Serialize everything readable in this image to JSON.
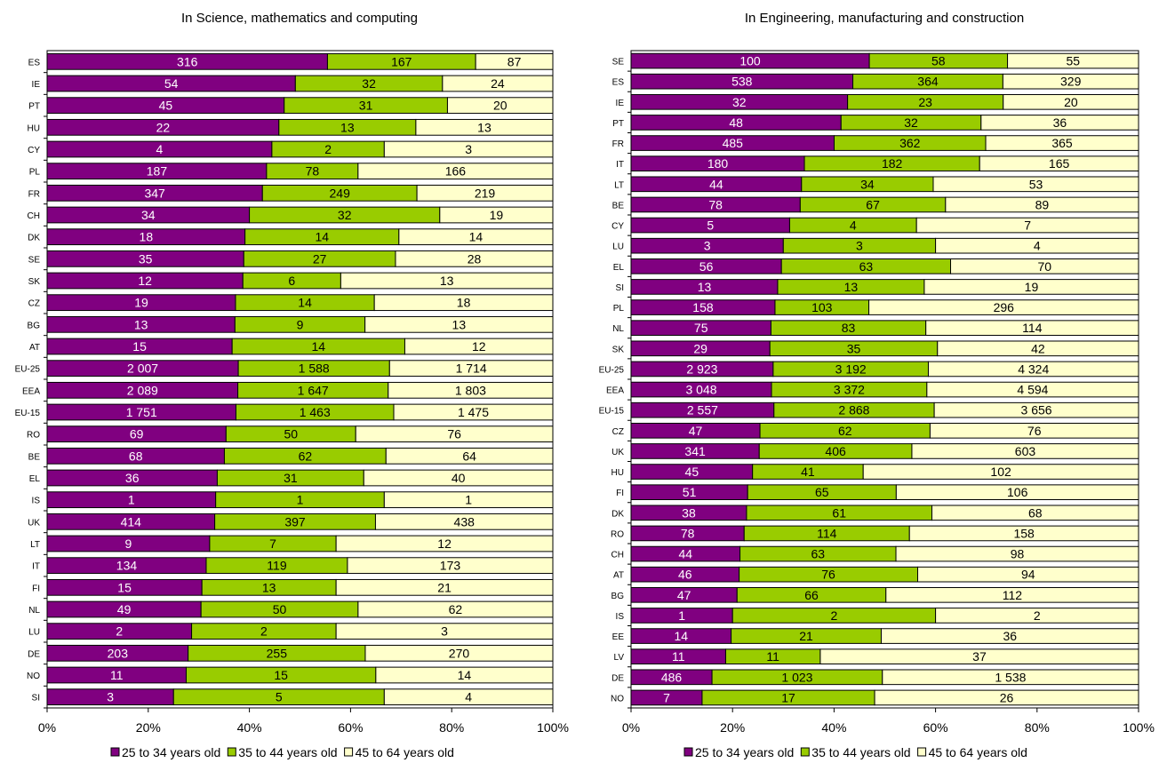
{
  "chart_data": [
    {
      "type": "bar",
      "stacked": "percent",
      "orientation": "horizontal",
      "title": "In Science, mathematics and computing",
      "categories": [
        "ES",
        "IE",
        "PT",
        "HU",
        "CY",
        "PL",
        "FR",
        "CH",
        "DK",
        "SE",
        "SK",
        "CZ",
        "BG",
        "AT",
        "EU-25",
        "EEA",
        "EU-15",
        "RO",
        "BE",
        "EL",
        "IS",
        "UK",
        "LT",
        "IT",
        "FI",
        "NL",
        "LU",
        "DE",
        "NO",
        "SI"
      ],
      "series": [
        {
          "name": "25 to 34 years old",
          "color": "#800080",
          "values": [
            316,
            54,
            45,
            22,
            4,
            187,
            347,
            34,
            18,
            35,
            12,
            19,
            13,
            15,
            2007,
            2089,
            1751,
            69,
            68,
            36,
            1,
            414,
            9,
            134,
            15,
            49,
            2,
            203,
            11,
            3
          ],
          "labels": [
            "316",
            "54",
            "45",
            "22",
            "4",
            "187",
            "347",
            "34",
            "18",
            "35",
            "12",
            "19",
            "13",
            "15",
            "2 007",
            "2 089",
            "1 751",
            "69",
            "68",
            "36",
            "1",
            "414",
            "9",
            "134",
            "15",
            "49",
            "2",
            "203",
            "11",
            "3"
          ]
        },
        {
          "name": "35 to 44 years old",
          "color": "#99CC00",
          "values": [
            167,
            32,
            31,
            13,
            2,
            78,
            249,
            32,
            14,
            27,
            6,
            14,
            9,
            14,
            1588,
            1647,
            1463,
            50,
            62,
            31,
            1,
            397,
            7,
            119,
            13,
            50,
            2,
            255,
            15,
            5
          ],
          "labels": [
            "167",
            "32",
            "31",
            "13",
            "2",
            "78",
            "249",
            "32",
            "14",
            "27",
            "6",
            "14",
            "9",
            "14",
            "1 588",
            "1 647",
            "1 463",
            "50",
            "62",
            "31",
            "1",
            "397",
            "7",
            "119",
            "13",
            "50",
            "2",
            "255",
            "15",
            "5"
          ]
        },
        {
          "name": "45 to 64 years old",
          "color": "#FFFFCC",
          "values": [
            87,
            24,
            20,
            13,
            3,
            166,
            219,
            19,
            14,
            28,
            13,
            18,
            13,
            12,
            1714,
            1803,
            1475,
            76,
            64,
            40,
            1,
            438,
            12,
            173,
            21,
            62,
            3,
            270,
            14,
            4
          ],
          "labels": [
            "87",
            "24",
            "20",
            "13",
            "3",
            "166",
            "219",
            "19",
            "14",
            "28",
            "13",
            "18",
            "13",
            "12",
            "1 714",
            "1 803",
            "1 475",
            "76",
            "64",
            "40",
            "1",
            "438",
            "12",
            "173",
            "21",
            "62",
            "3",
            "270",
            "14",
            "4"
          ]
        }
      ],
      "xticks": [
        "0%",
        "20%",
        "40%",
        "60%",
        "80%",
        "100%"
      ],
      "xlim": [
        0,
        100
      ],
      "legend": "bottom"
    },
    {
      "type": "bar",
      "stacked": "percent",
      "orientation": "horizontal",
      "title": "In Engineering, manufacturing and construction",
      "categories": [
        "SE",
        "ES",
        "IE",
        "PT",
        "FR",
        "IT",
        "LT",
        "BE",
        "CY",
        "LU",
        "EL",
        "SI",
        "PL",
        "NL",
        "SK",
        "EU-25",
        "EEA",
        "EU-15",
        "CZ",
        "UK",
        "HU",
        "FI",
        "DK",
        "RO",
        "CH",
        "AT",
        "BG",
        "IS",
        "EE",
        "LV",
        "DE",
        "NO"
      ],
      "series": [
        {
          "name": "25 to 34 years old",
          "color": "#800080",
          "values": [
            100,
            538,
            32,
            48,
            485,
            180,
            44,
            78,
            5,
            3,
            56,
            13,
            158,
            75,
            29,
            2923,
            3048,
            2557,
            47,
            341,
            45,
            51,
            38,
            78,
            44,
            46,
            47,
            1,
            14,
            11,
            486,
            7
          ],
          "labels": [
            "100",
            "538",
            "32",
            "48",
            "485",
            "180",
            "44",
            "78",
            "5",
            "3",
            "56",
            "13",
            "158",
            "75",
            "29",
            "2 923",
            "3 048",
            "2 557",
            "47",
            "341",
            "45",
            "51",
            "38",
            "78",
            "44",
            "46",
            "47",
            "1",
            "14",
            "11",
            "486",
            "7"
          ]
        },
        {
          "name": "35 to 44 years old",
          "color": "#99CC00",
          "values": [
            58,
            364,
            23,
            32,
            362,
            182,
            34,
            67,
            4,
            3,
            63,
            13,
            103,
            83,
            35,
            3192,
            3372,
            2868,
            62,
            406,
            41,
            65,
            61,
            114,
            63,
            76,
            66,
            2,
            21,
            11,
            1023,
            17
          ],
          "labels": [
            "58",
            "364",
            "23",
            "32",
            "362",
            "182",
            "34",
            "67",
            "4",
            "3",
            "63",
            "13",
            "103",
            "83",
            "35",
            "3 192",
            "3 372",
            "2 868",
            "62",
            "406",
            "41",
            "65",
            "61",
            "114",
            "63",
            "76",
            "66",
            "2",
            "21",
            "11",
            "1 023",
            "17"
          ]
        },
        {
          "name": "45 to 64 years old",
          "color": "#FFFFCC",
          "values": [
            55,
            329,
            20,
            36,
            365,
            165,
            53,
            89,
            7,
            4,
            70,
            19,
            296,
            114,
            42,
            4324,
            4594,
            3656,
            76,
            603,
            102,
            106,
            68,
            158,
            98,
            94,
            112,
            2,
            36,
            37,
            1538,
            26
          ],
          "labels": [
            "55",
            "329",
            "20",
            "36",
            "365",
            "165",
            "53",
            "89",
            "7",
            "4",
            "70",
            "19",
            "296",
            "114",
            "42",
            "4 324",
            "4 594",
            "3 656",
            "76",
            "603",
            "102",
            "106",
            "68",
            "158",
            "98",
            "94",
            "112",
            "2",
            "36",
            "37",
            "1 538",
            "26"
          ]
        }
      ],
      "xticks": [
        "0%",
        "20%",
        "40%",
        "60%",
        "80%",
        "100%"
      ],
      "xlim": [
        0,
        100
      ],
      "legend": "bottom"
    }
  ]
}
